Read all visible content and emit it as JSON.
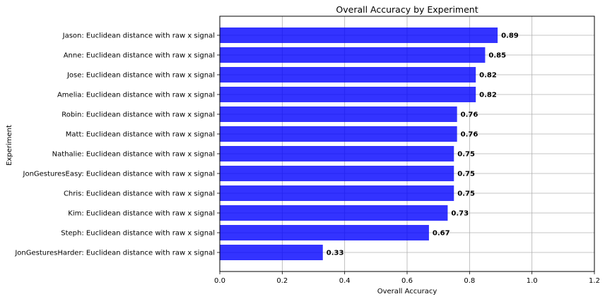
{
  "chart_data": {
    "type": "bar",
    "orientation": "horizontal",
    "title": "Overall Accuracy by Experiment",
    "xlabel": "Overall Accuracy",
    "ylabel": "Experiment",
    "xlim": [
      0,
      1.2
    ],
    "xticks": [
      0.0,
      0.2,
      0.4,
      0.6,
      0.8,
      1.0,
      1.2
    ],
    "xtick_labels": [
      "0.0",
      "0.2",
      "0.4",
      "0.6",
      "0.8",
      "1.0",
      "1.2"
    ],
    "grid": true,
    "bar_color": "#0000ff",
    "categories": [
      "Jason: Euclidean distance with raw x signal",
      "Anne: Euclidean distance with raw x signal",
      "Jose: Euclidean distance with raw x signal",
      "Amelia: Euclidean distance with raw x signal",
      "Robin: Euclidean distance with raw x signal",
      "Matt: Euclidean distance with raw x signal",
      "Nathalie: Euclidean distance with raw x signal",
      "JonGesturesEasy: Euclidean distance with raw x signal",
      "Chris: Euclidean distance with raw x signal",
      "Kim: Euclidean distance with raw x signal",
      "Steph: Euclidean distance with raw x signal",
      "JonGesturesHarder: Euclidean distance with raw x signal"
    ],
    "values": [
      0.89,
      0.85,
      0.82,
      0.82,
      0.76,
      0.76,
      0.75,
      0.75,
      0.75,
      0.73,
      0.67,
      0.33
    ],
    "value_labels": [
      "0.89",
      "0.85",
      "0.82",
      "0.82",
      "0.76",
      "0.76",
      "0.75",
      "0.75",
      "0.75",
      "0.73",
      "0.67",
      "0.33"
    ]
  }
}
